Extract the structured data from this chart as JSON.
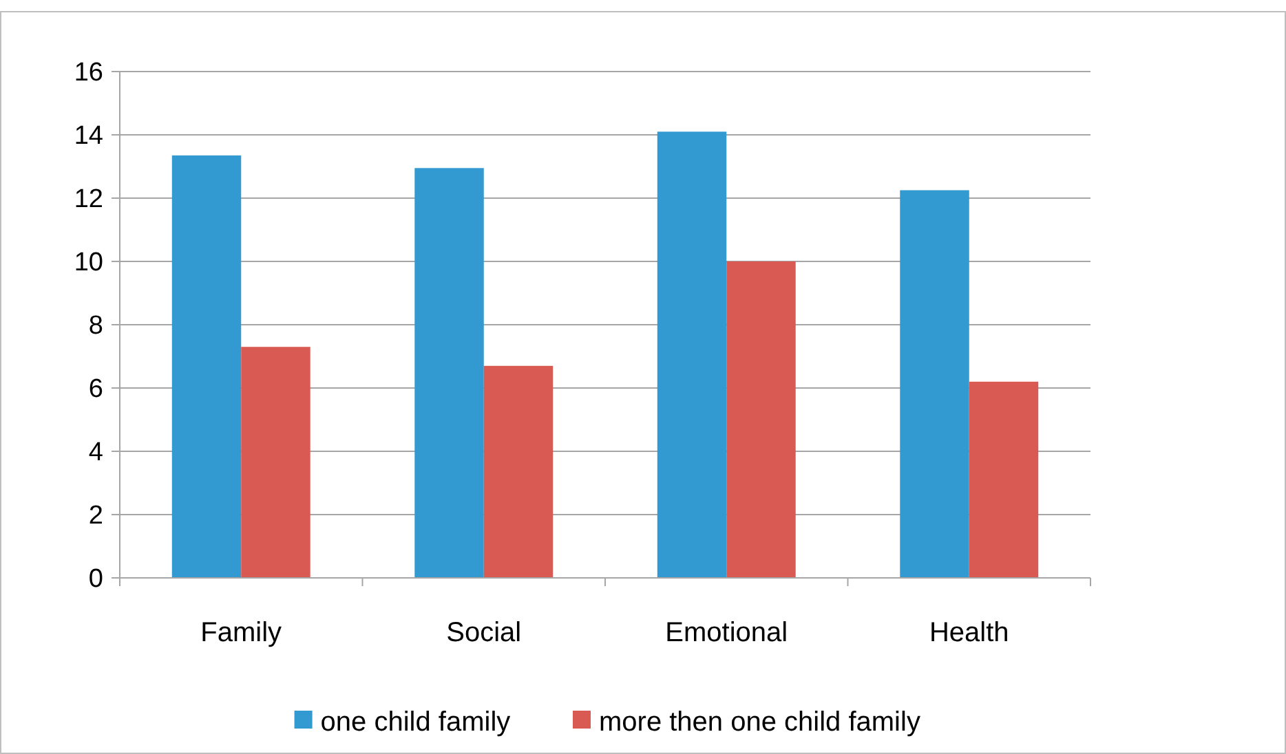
{
  "chart_data": {
    "type": "bar",
    "categories": [
      "Family",
      "Social",
      "Emotional",
      "Health"
    ],
    "series": [
      {
        "name": "one child family",
        "color": "#3399d1",
        "values": [
          13.35,
          12.95,
          14.1,
          12.25
        ]
      },
      {
        "name": "more then one child family",
        "color": "#d95a52",
        "values": [
          7.3,
          6.7,
          10,
          6.2
        ]
      }
    ],
    "ylim": [
      0,
      16
    ],
    "yticks": [
      0,
      2,
      4,
      6,
      8,
      10,
      12,
      14,
      16
    ],
    "grid": "y",
    "legend": "bottom"
  }
}
